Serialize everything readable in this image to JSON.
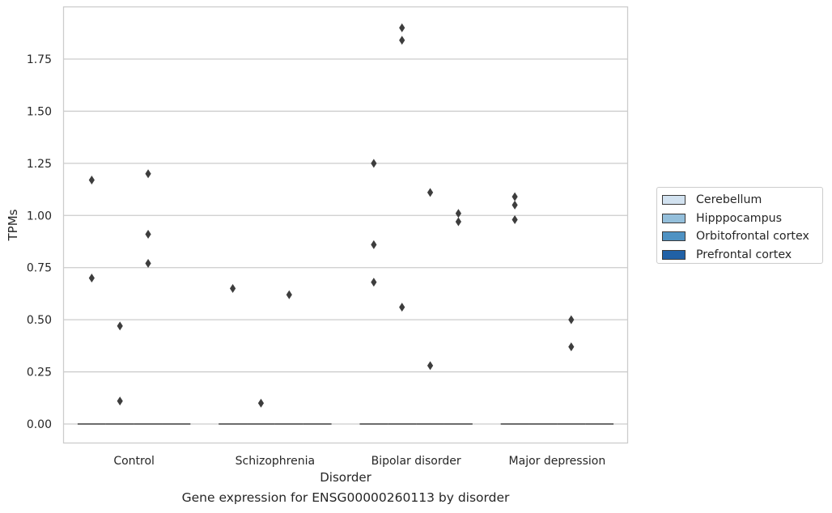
{
  "chart_data": {
    "type": "boxplot",
    "title": "",
    "xlabel": "Disorder",
    "ylabel": "TPMs",
    "caption": "Gene expression for ENSG00000260113 by disorder",
    "categories": [
      "Control",
      "Schizophrenia",
      "Bipolar disorder",
      "Major depression"
    ],
    "ylim": [
      -0.09,
      1.99
    ],
    "yticks": [
      0.0,
      0.25,
      0.5,
      0.75,
      1.0,
      1.25,
      1.5,
      1.75
    ],
    "ytick_labels": [
      "0.00",
      "0.25",
      "0.50",
      "0.75",
      "1.00",
      "1.25",
      "1.50",
      "1.75"
    ],
    "grid": "horizontal",
    "legend_position": "right",
    "series": [
      {
        "name": "Cerebellum",
        "color": "#d2e2f0",
        "median": [
          0,
          0,
          0,
          0
        ],
        "outliers": [
          [
            1.17,
            0.7
          ],
          [
            0.65
          ],
          [
            1.25,
            0.86,
            0.68
          ],
          [
            1.09,
            1.05,
            0.98
          ]
        ]
      },
      {
        "name": "Hipppocampus",
        "color": "#94bfdb",
        "median": [
          0,
          0,
          0,
          0
        ],
        "outliers": [
          [
            0.47,
            0.11
          ],
          [
            0.1
          ],
          [
            1.9,
            1.84,
            0.56
          ],
          []
        ]
      },
      {
        "name": "Orbitofrontal cortex",
        "color": "#4f92c3",
        "median": [
          0,
          0,
          0,
          0
        ],
        "outliers": [
          [
            1.2,
            0.91,
            0.77
          ],
          [
            0.62
          ],
          [
            1.11,
            0.28
          ],
          [
            0.5,
            0.37
          ]
        ]
      },
      {
        "name": "Prefrontal cortex",
        "color": "#2161a6",
        "median": [
          0,
          0,
          0,
          0
        ],
        "outliers": [
          [],
          [],
          [
            1.01,
            0.97
          ],
          []
        ]
      }
    ]
  }
}
